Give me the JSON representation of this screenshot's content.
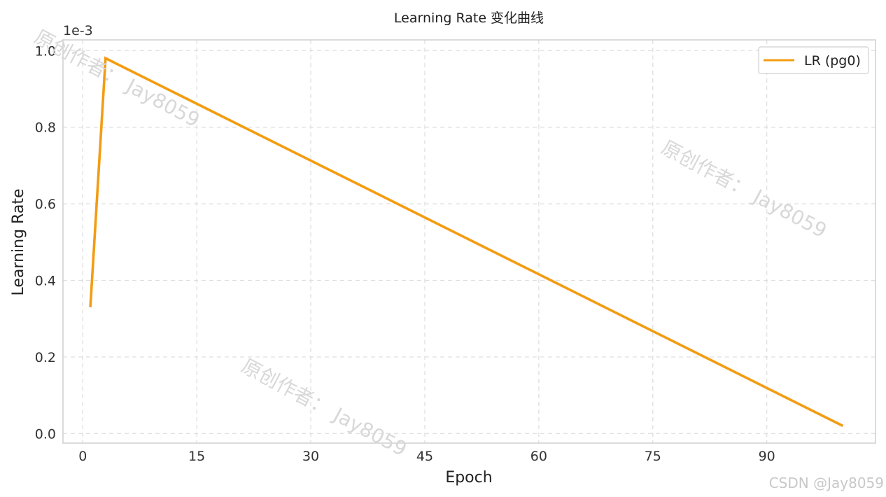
{
  "chart_data": {
    "type": "line",
    "title": "Learning Rate 变化曲线",
    "xlabel": "Epoch",
    "ylabel": "Learning Rate",
    "y_offset_label": "1e-3",
    "xlim": [
      -2.6,
      104.3
    ],
    "ylim": [
      -0.025,
      1.028
    ],
    "x_ticks": [
      0,
      15,
      30,
      45,
      60,
      75,
      90
    ],
    "y_ticks": [
      0.0,
      0.2,
      0.4,
      0.6,
      0.8,
      1.0
    ],
    "grid": true,
    "legend_position": "top-right",
    "series": [
      {
        "name": "LR (pg0)",
        "color": "#f39c12",
        "x": [
          1,
          3,
          100
        ],
        "y": [
          0.33,
          0.98,
          0.02
        ]
      }
    ]
  },
  "watermarks": [
    {
      "text": "原创作者： Jay8059"
    },
    {
      "text": "原创作者： Jay8059"
    },
    {
      "text": "原创作者： Jay8059"
    }
  ],
  "credit": "CSDN @Jay8059"
}
